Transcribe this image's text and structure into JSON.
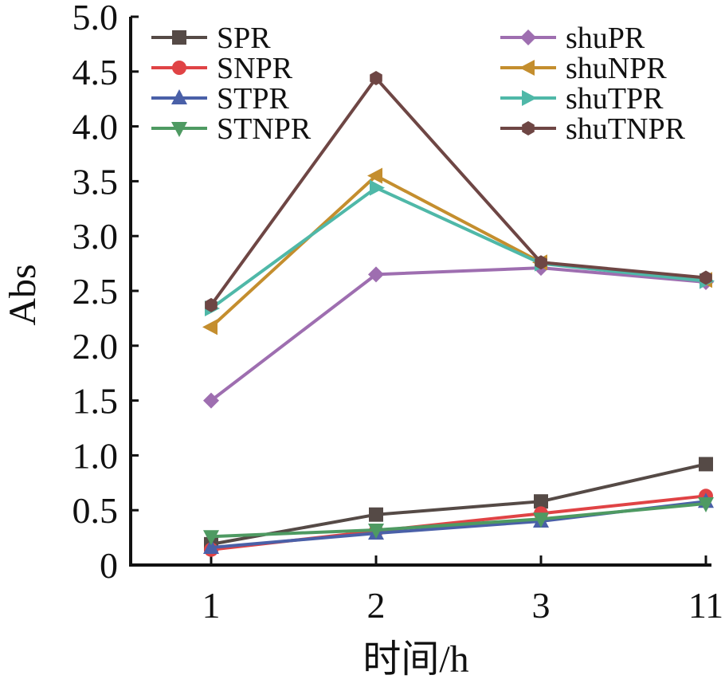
{
  "chart_data": {
    "type": "line",
    "title": "",
    "xlabel": "时间/h",
    "ylabel": "Abs",
    "categories": [
      "1",
      "2",
      "3",
      "11"
    ],
    "ylim": [
      0,
      5.0
    ],
    "yticks": [
      "0",
      "0.5",
      "1.0",
      "1.5",
      "2.0",
      "2.5",
      "3.0",
      "3.5",
      "4.0",
      "4.5",
      "5.0"
    ],
    "ytick_values": [
      0,
      0.5,
      1.0,
      1.5,
      2.0,
      2.5,
      3.0,
      3.5,
      4.0,
      4.5,
      5.0
    ],
    "grid": false,
    "legend_placement": "top (two columns)",
    "series": [
      {
        "name": "SPR",
        "color": "#554a46",
        "marker": "square",
        "values": [
          0.19,
          0.46,
          0.58,
          0.92
        ]
      },
      {
        "name": "SNPR",
        "color": "#e04345",
        "marker": "circle",
        "values": [
          0.14,
          0.31,
          0.47,
          0.63
        ]
      },
      {
        "name": "STPR",
        "color": "#4a60a8",
        "marker": "triangle-up",
        "values": [
          0.16,
          0.29,
          0.4,
          0.58
        ]
      },
      {
        "name": "STNPR",
        "color": "#4e9a62",
        "marker": "triangle-down",
        "values": [
          0.26,
          0.32,
          0.42,
          0.56
        ]
      },
      {
        "name": "shuPR",
        "color": "#9e6eb0",
        "marker": "diamond",
        "values": [
          1.5,
          2.65,
          2.71,
          2.58
        ]
      },
      {
        "name": "shuNPR",
        "color": "#c48e2e",
        "marker": "triangle-left",
        "values": [
          2.17,
          3.55,
          2.76,
          2.6
        ]
      },
      {
        "name": "shuTPR",
        "color": "#4fb8a8",
        "marker": "triangle-right",
        "values": [
          2.34,
          3.44,
          2.75,
          2.59
        ]
      },
      {
        "name": "shuTNPR",
        "color": "#6e4644",
        "marker": "hexagon",
        "values": [
          2.37,
          4.44,
          2.76,
          2.62
        ]
      }
    ]
  }
}
